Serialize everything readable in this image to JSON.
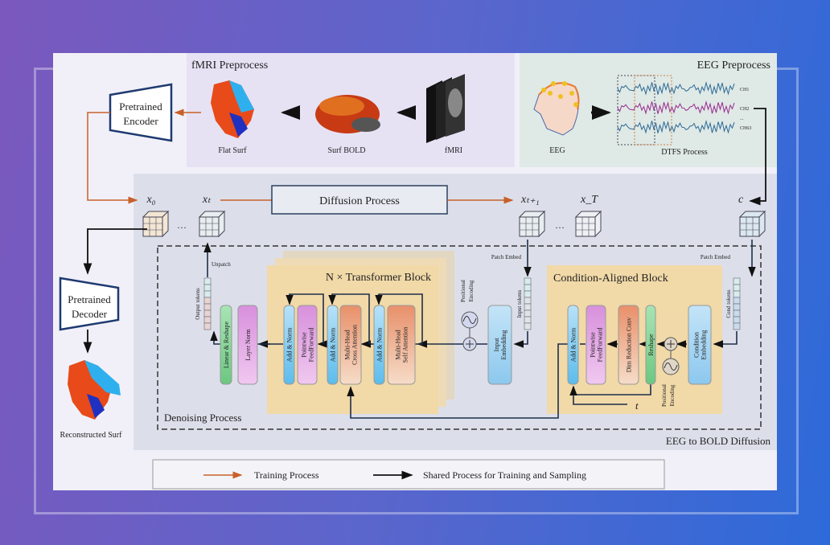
{
  "fmri_preprocess": {
    "title": "fMRI Preprocess",
    "flat_surf": "Flat Surf",
    "surf_bold": "Surf BOLD",
    "fmri": "fMRI"
  },
  "eeg_preprocess": {
    "title": "EEG Preprocess",
    "eeg": "EEG",
    "dtfs": "DTFS Process",
    "channels": [
      "CH1",
      "CH2",
      "...",
      "CH63"
    ]
  },
  "encoder": {
    "line1": "Pretrained",
    "line2": "Encoder"
  },
  "decoder": {
    "line1": "Pretrained",
    "line2": "Decoder"
  },
  "reconstructed": "Reconstructed Surf",
  "diffusion": {
    "process": "Diffusion Process",
    "x0": "x₀",
    "xt": "xₜ",
    "xt1": "xₜ₊₁",
    "xT": "x_T",
    "c": "c",
    "dots": "···",
    "title": "EEG to BOLD Diffusion"
  },
  "denoising": {
    "title": "Denoising Process",
    "unpatch": "Unpatch",
    "output_tokens": "Output tokens",
    "input_tokens": "Input tokens",
    "patch_embed": "Patch Embed",
    "positional_encoding": "Positional Encoding",
    "linear_reshape": "Linear & Reshape",
    "layer_norm": "Layer Norm",
    "add_norm": "Add & Norm",
    "pointwise": "Pointwise",
    "feedforward": "FeedForward",
    "multihead": "Multi-Head",
    "cross_attention": "Cross Attention",
    "self_attention": "Self Attention",
    "input": "Input",
    "embedding": "Embedding",
    "transformer_block": "N × Transformer Block"
  },
  "condition": {
    "title": "Condition-Aligned Block",
    "patch_embed": "Patch Embed",
    "cond_tokens": "Cond tokens",
    "condition": "Condition",
    "embedding": "Embedding",
    "reshape": "Reshape",
    "dim_reduction": "Dim Reduction Conv",
    "pointwise": "Pointwise",
    "feedforward": "FeedForward",
    "add_norm": "Add & Norm",
    "t": "t",
    "positional": "Positional",
    "encoding": "Encoding"
  },
  "legend": {
    "training": "Training Process",
    "shared": "Shared Process for Training and Sampling"
  },
  "colors": {
    "training_arrow": "#c8602a",
    "shared_arrow": "#111111",
    "add_norm": "#8fd0f2",
    "feedforward": "#dca0e0",
    "attention": "#eeb898",
    "reshape": "#8fd89c",
    "block_bg": "#f1d9a8"
  }
}
